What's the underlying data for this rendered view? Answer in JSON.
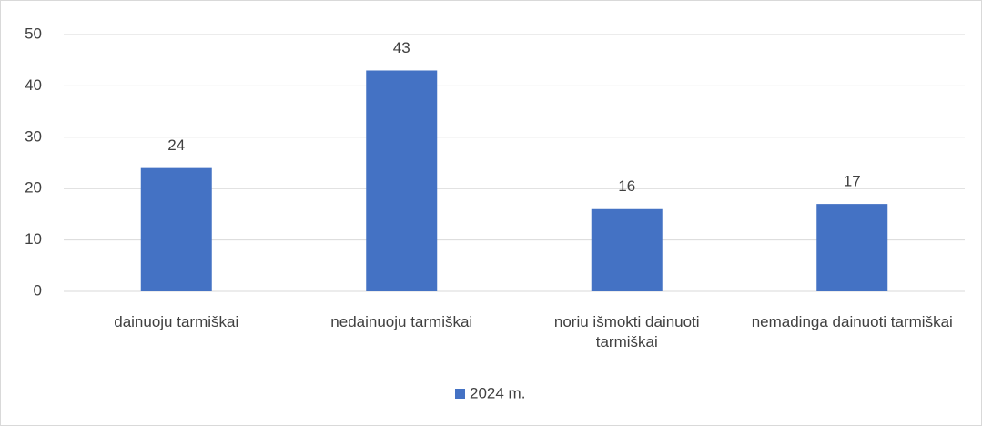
{
  "chart_data": {
    "type": "bar",
    "categories": [
      "dainuoju tarmiškai",
      "nedainuoju tarmiškai",
      "noriu išmokti dainuoti tarmiškai",
      "nemadinga dainuoti tarmiškai"
    ],
    "series": [
      {
        "name": "2024 m.",
        "color": "#4472c4",
        "values": [
          24,
          43,
          16,
          17
        ]
      }
    ],
    "ylim": [
      0,
      50
    ],
    "yticks": [
      0,
      10,
      20,
      30,
      40,
      50
    ],
    "grid": true,
    "legend": "bottom",
    "data_labels": true
  }
}
